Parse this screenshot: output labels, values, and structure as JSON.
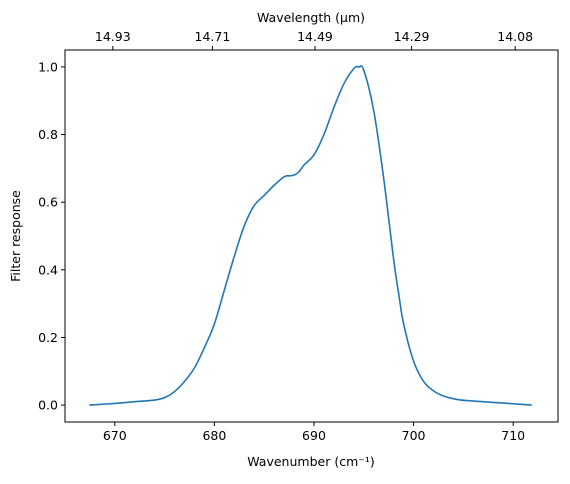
{
  "chart_data": {
    "type": "line",
    "xlabel": "Wavenumber (cm⁻¹)",
    "ylabel": "Filter response",
    "top_xlabel": "Wavelength (μm)",
    "xlim": [
      665.0,
      714.5
    ],
    "ylim": [
      -0.05,
      1.05
    ],
    "x_ticks": [
      670,
      680,
      690,
      700,
      710
    ],
    "y_ticks": [
      0.0,
      0.2,
      0.4,
      0.6,
      0.8,
      1.0
    ],
    "x_tick_labels": [
      "670",
      "680",
      "690",
      "700",
      "710"
    ],
    "y_tick_labels": [
      "0.0",
      "0.2",
      "0.4",
      "0.6",
      "0.8",
      "1.0"
    ],
    "top_ticks": [
      {
        "label": "14.93",
        "wavenumber": 669.8
      },
      {
        "label": "14.71",
        "wavenumber": 679.8
      },
      {
        "label": "14.49",
        "wavenumber": 690.1
      },
      {
        "label": "14.29",
        "wavenumber": 699.8
      },
      {
        "label": "14.08",
        "wavenumber": 710.2
      }
    ],
    "grid": false,
    "series": [
      {
        "color": "#1f77b4",
        "x": [
          667.5,
          670,
          672,
          674,
          675,
          676,
          677,
          678,
          679,
          680,
          681,
          682,
          683,
          684,
          685,
          686,
          687,
          687.5,
          688,
          688.5,
          689,
          690,
          691,
          692,
          693,
          694,
          694.5,
          695,
          696,
          697,
          698,
          698.5,
          699,
          700,
          701,
          702,
          703,
          704.5,
          706,
          708,
          710,
          711.8
        ],
        "y": [
          0.0,
          0.005,
          0.01,
          0.015,
          0.022,
          0.04,
          0.07,
          0.11,
          0.17,
          0.24,
          0.34,
          0.44,
          0.53,
          0.59,
          0.62,
          0.65,
          0.675,
          0.678,
          0.68,
          0.69,
          0.71,
          0.74,
          0.8,
          0.88,
          0.95,
          0.995,
          1.0,
          0.99,
          0.87,
          0.67,
          0.43,
          0.33,
          0.24,
          0.13,
          0.07,
          0.042,
          0.027,
          0.016,
          0.012,
          0.008,
          0.004,
          0.0
        ]
      }
    ]
  }
}
